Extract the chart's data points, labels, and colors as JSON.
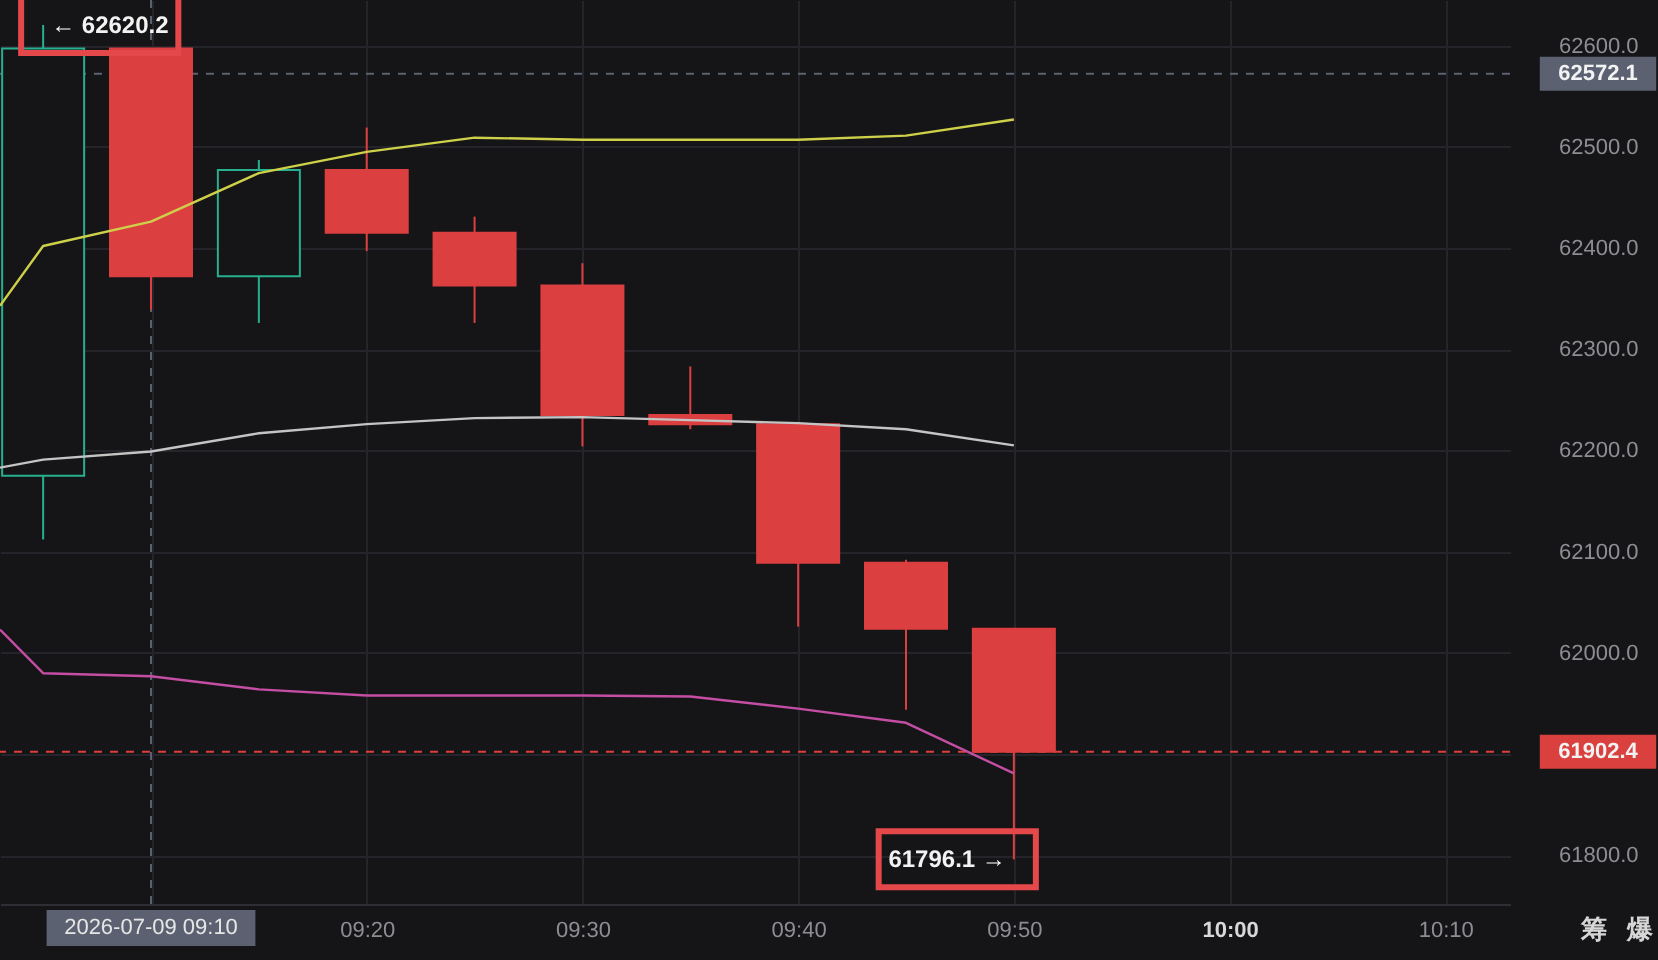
{
  "chart_data": {
    "type": "candlestick",
    "x": [
      "2026-07-09T09:05",
      "2026-07-09T09:10",
      "2026-07-09T09:15",
      "2026-07-09T09:20",
      "2026-07-09T09:25",
      "2026-07-09T09:30",
      "2026-07-09T09:35",
      "2026-07-09T09:40",
      "2026-07-09T09:45",
      "2026-07-09T09:50"
    ],
    "ohlc": [
      [
        62175,
        62620.2,
        62112,
        62597
      ],
      [
        62597,
        62597,
        62339,
        62372
      ],
      [
        62372,
        62487,
        62326,
        62477
      ],
      [
        62477,
        62519,
        62397,
        62415
      ],
      [
        62415,
        62431,
        62326,
        62363
      ],
      [
        62363,
        62385,
        62204,
        62235
      ],
      [
        62235,
        62283,
        62221,
        62226
      ],
      [
        62226,
        62228,
        62026,
        62089
      ],
      [
        62089,
        62092,
        61944,
        62024
      ],
      [
        62024,
        62024,
        61796.1,
        61902.4
      ]
    ],
    "colors": [
      "#26b08f",
      "#dc3f40",
      "#26b08f",
      "#dc3f40",
      "#dc3f40",
      "#dc3f40",
      "#dc3f40",
      "#dc3f40",
      "#dc3f40",
      "#dc3f40"
    ],
    "series": [
      {
        "type": "line",
        "color": "#cfd04a",
        "x": [
          "2026-07-09T09:03",
          "2026-07-09T09:05",
          "2026-07-09T09:10",
          "2026-07-09T09:15",
          "2026-07-09T09:20",
          "2026-07-09T09:25",
          "2026-07-09T09:30",
          "2026-07-09T09:35",
          "2026-07-09T09:40",
          "2026-07-09T09:45",
          "2026-07-09T09:50"
        ],
        "values": [
          62343,
          62402,
          62426,
          62474,
          62495,
          62509,
          62507,
          62507,
          62507,
          62511,
          62527
        ]
      },
      {
        "type": "line",
        "color": "#c4c4c4",
        "x": [
          "2026-07-09T09:03",
          "2026-07-09T09:05",
          "2026-07-09T09:10",
          "2026-07-09T09:15",
          "2026-07-09T09:20",
          "2026-07-09T09:25",
          "2026-07-09T09:30",
          "2026-07-09T09:35",
          "2026-07-09T09:40",
          "2026-07-09T09:45",
          "2026-07-09T09:50"
        ],
        "values": [
          62183,
          62191,
          62199,
          62217,
          62226,
          62232,
          62233,
          62230,
          62227,
          62221,
          62205
        ]
      },
      {
        "type": "line",
        "color": "#c44ea4",
        "x": [
          "2026-07-09T09:03",
          "2026-07-09T09:05",
          "2026-07-09T09:10",
          "2026-07-09T09:15",
          "2026-07-09T09:20",
          "2026-07-09T09:25",
          "2026-07-09T09:30",
          "2026-07-09T09:35",
          "2026-07-09T09:40",
          "2026-07-09T09:45",
          "2026-07-09T09:50"
        ],
        "values": [
          62023,
          61980,
          61977,
          61964,
          61958,
          61958,
          61958,
          61957,
          61945,
          61931,
          61881
        ]
      }
    ],
    "xlim": [
      "2026-07-09T09:03",
      "2026-07-09T10:13"
    ],
    "xticks": [
      {
        "value": "2026-07-09T09:10",
        "label": null
      },
      {
        "value": "2026-07-09T09:20",
        "label": "09:20"
      },
      {
        "value": "2026-07-09T09:30",
        "label": "09:30"
      },
      {
        "value": "2026-07-09T09:40",
        "label": "09:40"
      },
      {
        "value": "2026-07-09T09:50",
        "label": "09:50"
      },
      {
        "value": "2026-07-09T10:00",
        "label": "10:00"
      },
      {
        "value": "2026-07-09T10:10",
        "label": "10:10"
      }
    ],
    "ylim": [
      61752,
      62645
    ],
    "yticks": [
      {
        "value": 61800,
        "label": "61800.0"
      },
      {
        "value": 61900,
        "label": null
      },
      {
        "value": 62000,
        "label": "62000.0"
      },
      {
        "value": 62100,
        "label": "62100.0"
      },
      {
        "value": 62200,
        "label": "62200.0"
      },
      {
        "value": 62300,
        "label": "62300.0"
      },
      {
        "value": 62400,
        "label": "62400.0"
      },
      {
        "value": 62500,
        "label": "62500.0"
      },
      {
        "value": 62600,
        "label": "62600.0"
      }
    ],
    "grid": true,
    "ref_lines": [
      {
        "axis": "y",
        "value": 62572.1,
        "label": "62572.1",
        "color": "#5b6170",
        "line_style": "dashed"
      },
      {
        "axis": "y",
        "value": 61902.4,
        "label": "61902.4",
        "color": "#d9403e",
        "line_style": "dashed"
      },
      {
        "axis": "x",
        "value": "2026-07-09T09:10",
        "label": "2026-07-09 09:10",
        "color": "#5b6170",
        "line_style": "dashed"
      }
    ],
    "annotations": [
      {
        "text": "← 62620.2",
        "x": "2026-07-09T09:05",
        "y": 62620.2
      },
      {
        "text": "61796.1 →",
        "x": "2026-07-09T09:50",
        "y": 61796.1
      },
      "筹",
      "爆"
    ]
  }
}
